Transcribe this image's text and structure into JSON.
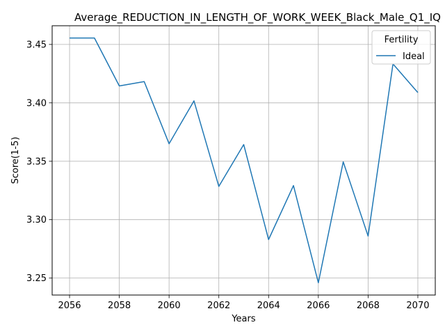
{
  "chart_data": {
    "type": "line",
    "title": "Average_REDUCTION_IN_LENGTH_OF_WORK_WEEK_Black_Male_Q1_IQ",
    "xlabel": "Years",
    "ylabel": "Score(1-5)",
    "xlim": [
      2055.3,
      2070.7
    ],
    "ylim": [
      3.2355,
      3.466
    ],
    "x_ticks": [
      2056,
      2058,
      2060,
      2062,
      2064,
      2066,
      2068,
      2070
    ],
    "y_ticks": [
      3.25,
      3.3,
      3.35,
      3.4,
      3.45
    ],
    "y_tick_labels": [
      "3.25",
      "3.30",
      "3.35",
      "3.40",
      "3.45"
    ],
    "grid": true,
    "legend": {
      "title": "Fertility",
      "position": "top-right"
    },
    "series": [
      {
        "name": "Ideal",
        "color": "#1f77b4",
        "x": [
          2056,
          2057,
          2058,
          2059,
          2060,
          2061,
          2062,
          2063,
          2064,
          2065,
          2066,
          2067,
          2068,
          2069,
          2070
        ],
        "y": [
          3.4555,
          3.4555,
          3.4145,
          3.4182,
          3.365,
          3.4017,
          3.3285,
          3.3643,
          3.283,
          3.3292,
          3.246,
          3.3495,
          3.286,
          3.4333,
          3.4088
        ]
      }
    ]
  }
}
